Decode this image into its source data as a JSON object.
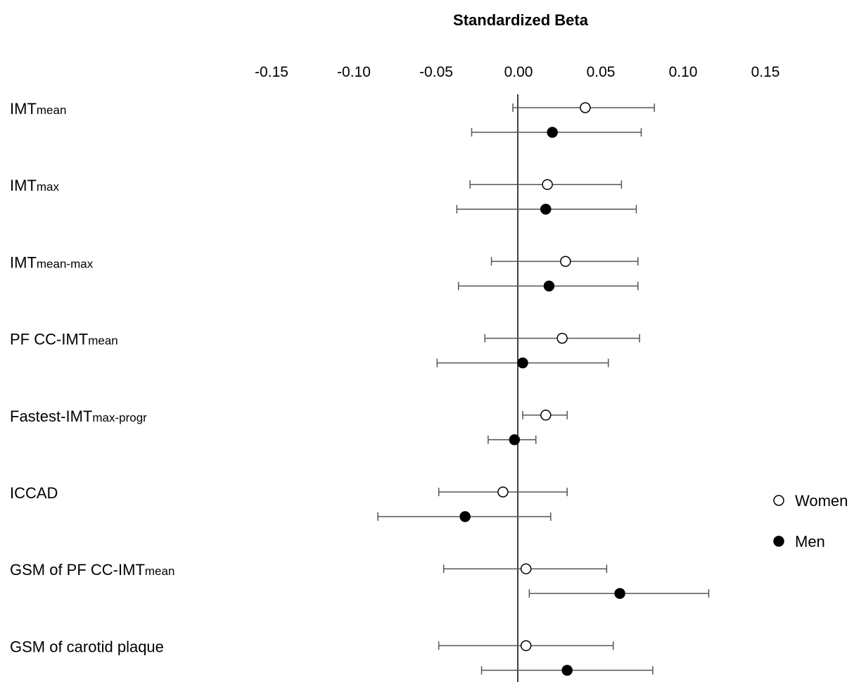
{
  "chart_data": {
    "type": "forest",
    "title": "Standardized Beta",
    "x_ticks": [
      "-0.15",
      "-0.10",
      "-0.05",
      "0.00",
      "0.05",
      "0.10",
      "0.15"
    ],
    "x_tick_values": [
      -0.15,
      -0.1,
      -0.05,
      0.0,
      0.05,
      0.1,
      0.15
    ],
    "xlim": [
      -0.15,
      0.15
    ],
    "reference_line": 0,
    "legend_position": "right",
    "series": [
      {
        "name": "Women",
        "marker": "open-circle",
        "color": "#ffffff"
      },
      {
        "name": "Men",
        "marker": "filled-circle",
        "color": "#000000"
      }
    ],
    "rows": [
      {
        "label": "IMT",
        "sub": "mean",
        "women": {
          "beta": 0.041,
          "lo": -0.003,
          "hi": 0.083
        },
        "men": {
          "beta": 0.021,
          "lo": -0.028,
          "hi": 0.075
        }
      },
      {
        "label": "IMT",
        "sub": "max",
        "women": {
          "beta": 0.018,
          "lo": -0.029,
          "hi": 0.063
        },
        "men": {
          "beta": 0.017,
          "lo": -0.037,
          "hi": 0.072
        }
      },
      {
        "label": "IMT",
        "sub": "mean-max",
        "women": {
          "beta": 0.029,
          "lo": -0.016,
          "hi": 0.073
        },
        "men": {
          "beta": 0.019,
          "lo": -0.036,
          "hi": 0.073
        }
      },
      {
        "label": "PF CC-IMT",
        "sub": "mean",
        "women": {
          "beta": 0.027,
          "lo": -0.02,
          "hi": 0.074
        },
        "men": {
          "beta": 0.003,
          "lo": -0.049,
          "hi": 0.055
        }
      },
      {
        "label": "Fastest-IMT",
        "sub": "max-progr",
        "women": {
          "beta": 0.017,
          "lo": 0.003,
          "hi": 0.03
        },
        "men": {
          "beta": -0.002,
          "lo": -0.018,
          "hi": 0.011
        }
      },
      {
        "label": "ICCAD",
        "sub": "",
        "women": {
          "beta": -0.009,
          "lo": -0.048,
          "hi": 0.03
        },
        "men": {
          "beta": -0.032,
          "lo": -0.085,
          "hi": 0.02
        }
      },
      {
        "label": "GSM of PF CC-IMT",
        "sub": "mean",
        "women": {
          "beta": 0.005,
          "lo": -0.045,
          "hi": 0.054
        },
        "men": {
          "beta": 0.062,
          "lo": 0.007,
          "hi": 0.116
        }
      },
      {
        "label": "GSM of carotid plaque",
        "sub": "",
        "women": {
          "beta": 0.005,
          "lo": -0.048,
          "hi": 0.058
        },
        "men": {
          "beta": 0.03,
          "lo": -0.022,
          "hi": 0.082
        }
      }
    ]
  }
}
